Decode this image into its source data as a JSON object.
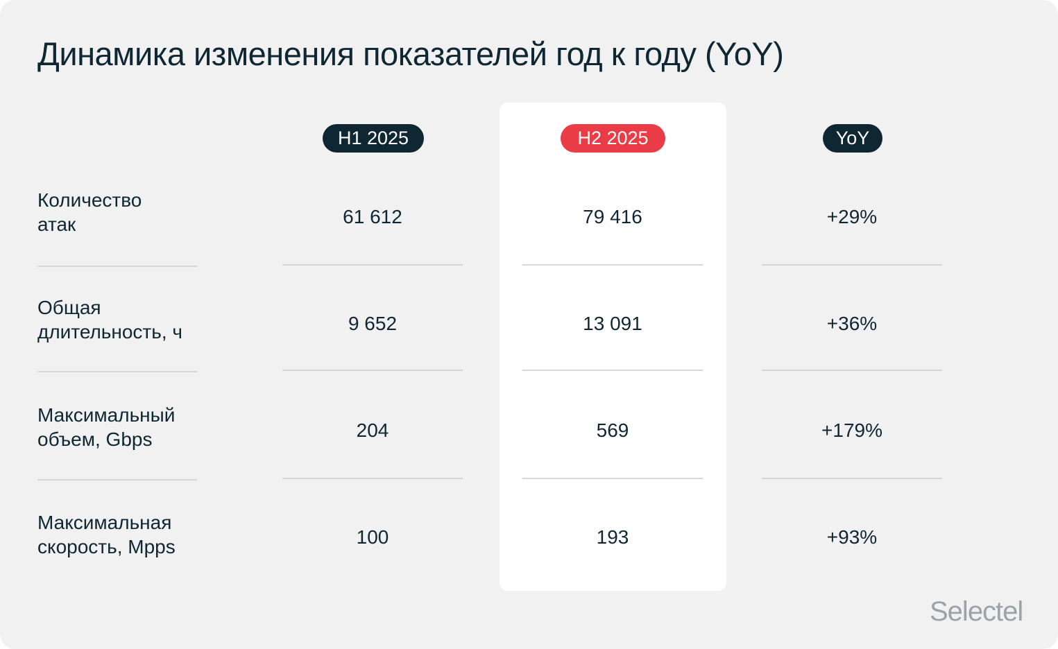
{
  "title": "Динамика изменения показателей год к году (YoY)",
  "columns": {
    "h1": "H1 2025",
    "h2": "H2 2025",
    "yoy": "YoY"
  },
  "rows": [
    {
      "label": "Количество\nатак",
      "h1": "61 612",
      "h2": "79 416",
      "yoy": "+29%"
    },
    {
      "label": "Общая\nдлительность, ч",
      "h1": "9 652",
      "h2": "13 091",
      "yoy": "+36%"
    },
    {
      "label": "Максимальный\nобъем, Gbps",
      "h1": "204",
      "h2": "569",
      "yoy": "+179%"
    },
    {
      "label": "Максимальная\nскорость, Mpps",
      "h1": "100",
      "h2": "193",
      "yoy": "+93%"
    }
  ],
  "logo": "Selectel",
  "colors": {
    "dark": "#0f2733",
    "accent_red": "#ea3c46",
    "background": "#f1f1f1",
    "logo_gray": "#9aa3a8"
  }
}
